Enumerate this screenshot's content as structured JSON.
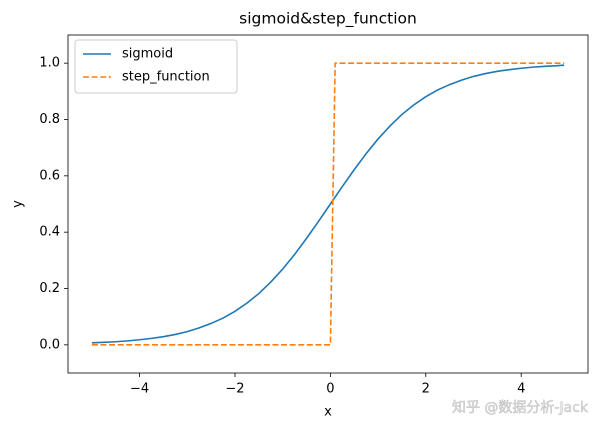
{
  "chart_data": {
    "type": "line",
    "title": "sigmoid&step_function",
    "xlabel": "x",
    "ylabel": "y",
    "xlim": [
      -5.5,
      5.4
    ],
    "ylim": [
      -0.1,
      1.1
    ],
    "xticks": [
      {
        "value": -4,
        "label": "−4"
      },
      {
        "value": -2,
        "label": "−2"
      },
      0,
      2,
      4
    ],
    "yticks": [
      {
        "value": 0,
        "label": "0.0"
      },
      0.2,
      0.4,
      0.6,
      0.8,
      {
        "value": 1,
        "label": "1.0"
      }
    ],
    "legend": "upper left",
    "grid": false,
    "series": [
      {
        "name": "sigmoid",
        "color": "#1f77b4",
        "dash": false,
        "x": [
          -5,
          -4.75,
          -4.5,
          -4.25,
          -4,
          -3.75,
          -3.5,
          -3.25,
          -3,
          -2.75,
          -2.5,
          -2.25,
          -2,
          -1.75,
          -1.5,
          -1.25,
          -1,
          -0.75,
          -0.5,
          -0.25,
          0,
          0.25,
          0.5,
          0.75,
          1,
          1.25,
          1.5,
          1.75,
          2,
          2.25,
          2.5,
          2.75,
          3,
          3.25,
          3.5,
          3.75,
          4,
          4.25,
          4.5,
          4.75,
          4.9
        ],
        "values": [
          0.007,
          0.009,
          0.011,
          0.014,
          0.018,
          0.023,
          0.029,
          0.037,
          0.047,
          0.06,
          0.076,
          0.095,
          0.119,
          0.148,
          0.182,
          0.223,
          0.269,
          0.321,
          0.378,
          0.438,
          0.5,
          0.562,
          0.622,
          0.679,
          0.731,
          0.777,
          0.818,
          0.852,
          0.881,
          0.905,
          0.924,
          0.94,
          0.953,
          0.963,
          0.971,
          0.977,
          0.982,
          0.986,
          0.989,
          0.991,
          0.993
        ]
      },
      {
        "name": "step_function",
        "color": "#ff7f0e",
        "dash": true,
        "x": [
          -5,
          0,
          0.1,
          4.9
        ],
        "values": [
          0,
          0,
          1,
          1
        ]
      }
    ]
  },
  "watermark": "知乎 @数据分析-Jack"
}
